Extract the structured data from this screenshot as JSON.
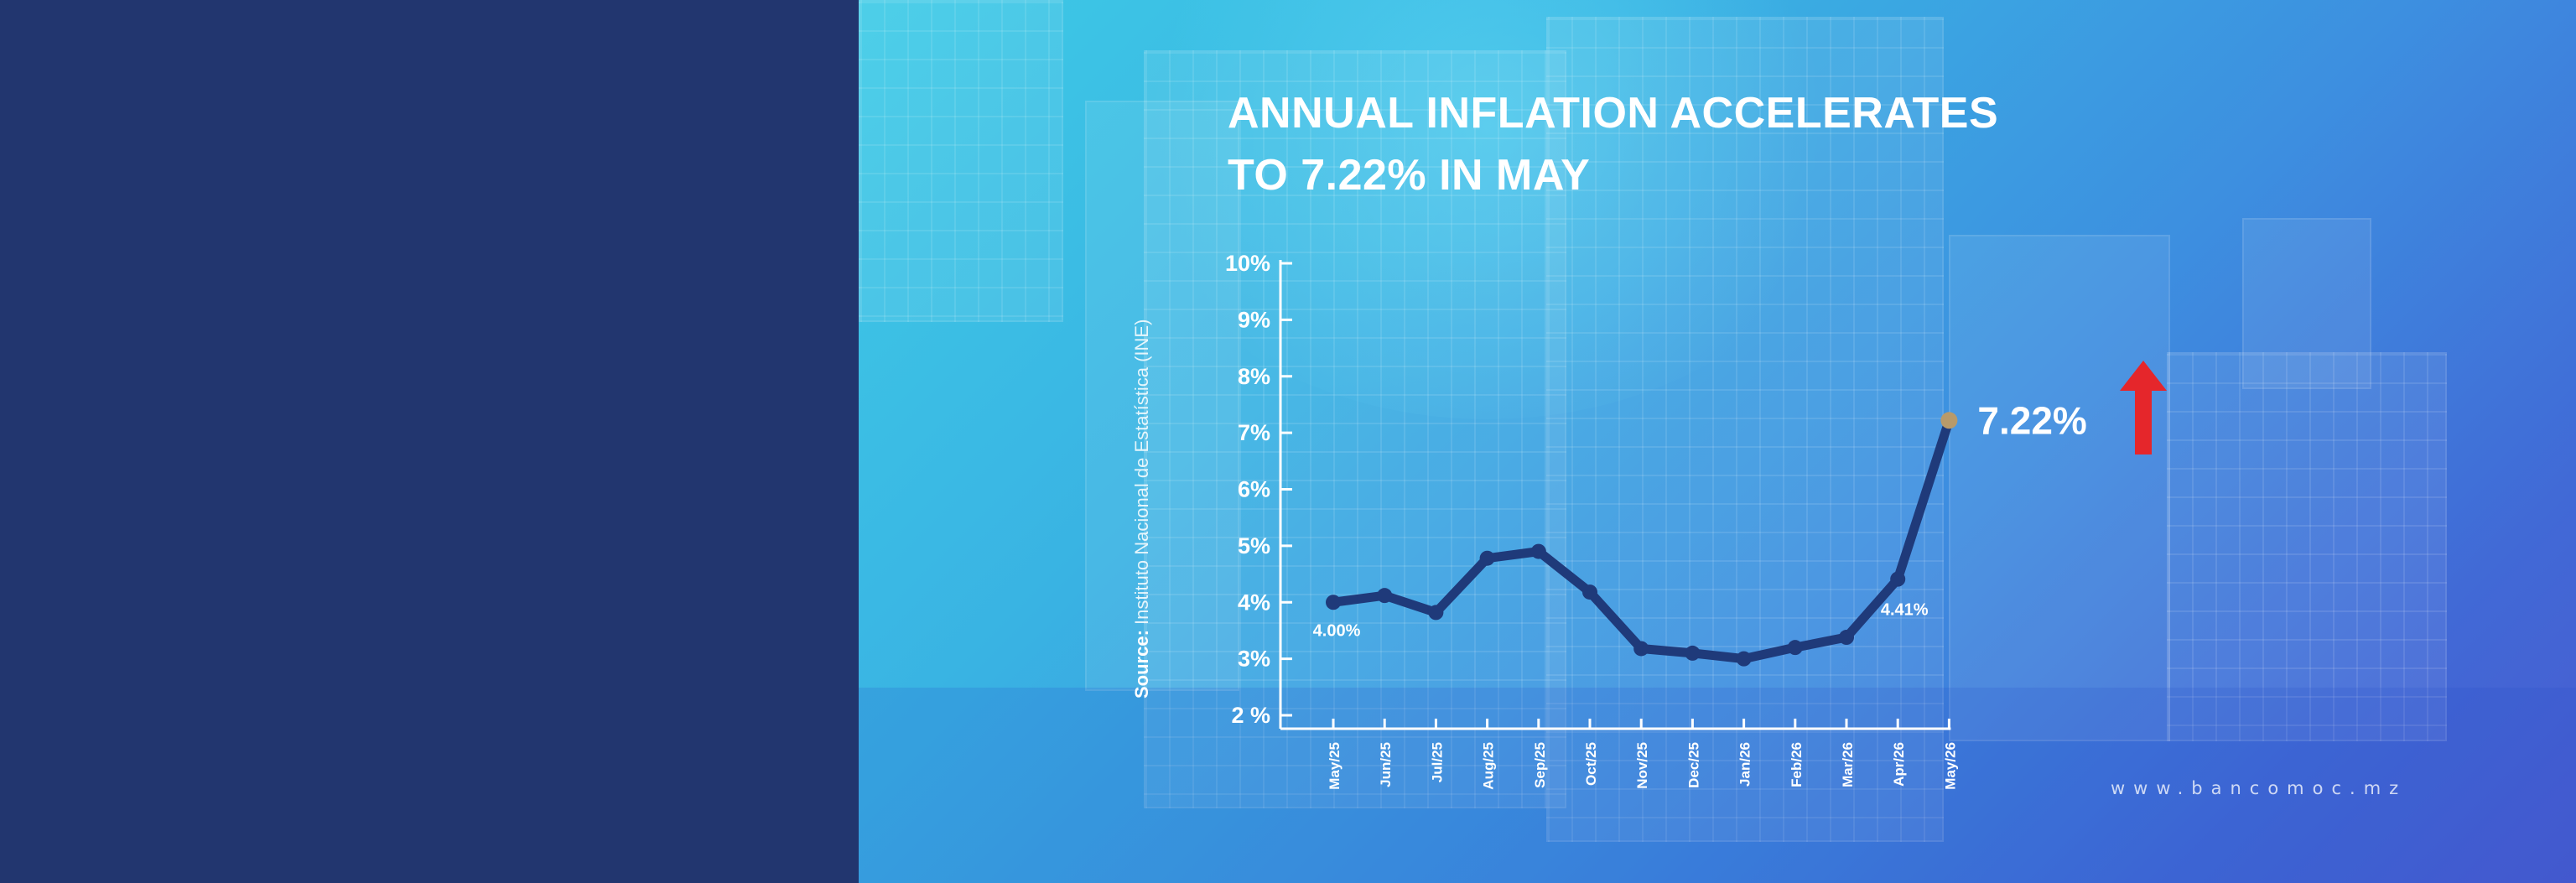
{
  "header": {
    "title_line1": "ANNUAL INFLATION ACCELERATES",
    "title_line2": "TO 7.22% IN MAY"
  },
  "source": {
    "label": "Source:",
    "text": "Instituto Nacional de Estatística (INE)"
  },
  "footer": {
    "website": "www.bancomoc.mz"
  },
  "colors": {
    "left_panel": "#22366f",
    "line": "#1f3a7a",
    "last_point": "#b89a6a",
    "arrow": "#e5262b",
    "text": "#ffffff"
  },
  "chart_data": {
    "type": "line",
    "title": "ANNUAL INFLATION ACCELERATES TO 7.22% IN MAY",
    "categories": [
      "May/25",
      "Jun/25",
      "Jul/25",
      "Aug/25",
      "Sep/25",
      "Oct/25",
      "Nov/25",
      "Dec/25",
      "Jan/26",
      "Feb/26",
      "Mar/26",
      "Apr/26",
      "May/26"
    ],
    "series": [
      {
        "values": [
          4.0,
          4.12,
          3.82,
          4.78,
          4.9,
          4.18,
          3.18,
          3.1,
          3.0,
          3.2,
          3.38,
          4.41,
          7.22
        ]
      }
    ],
    "y_ticks": [
      "2 %",
      "3%",
      "4%",
      "5%",
      "6%",
      "7%",
      "8%",
      "9%",
      "10%"
    ],
    "ylim": [
      2,
      10
    ],
    "data_labels": [
      {
        "index": 0,
        "text": "4.00%"
      },
      {
        "index": 11,
        "text": "4.41%"
      },
      {
        "index": 12,
        "text": "7.22%"
      }
    ],
    "grid": false,
    "legend": "none"
  }
}
